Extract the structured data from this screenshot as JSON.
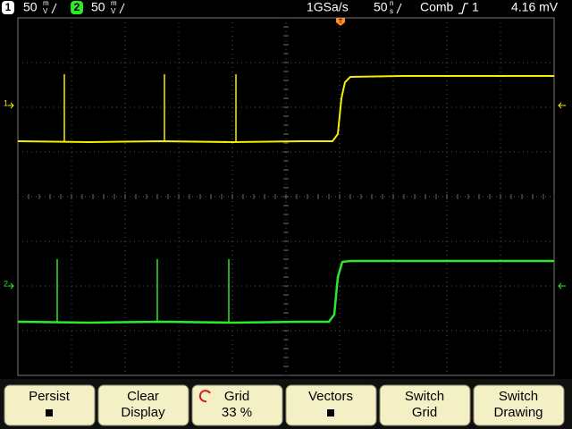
{
  "status": {
    "ch1": {
      "number": "1",
      "scale": "50",
      "unit_top": "m",
      "unit_bottom": "V"
    },
    "ch2": {
      "number": "2",
      "scale": "50",
      "unit_top": "m",
      "unit_bottom": "V"
    },
    "sample_rate": "1GSa/s",
    "timebase": {
      "scale": "50",
      "unit_top": "n",
      "unit_bottom": "s"
    },
    "trigger_mode": "Comb",
    "trigger_source": "1",
    "trigger_level": "4.16 mV"
  },
  "markers": {
    "trigger": "T",
    "ch1": "1",
    "ch2": "2"
  },
  "softkeys": [
    {
      "line1": "Persist"
    },
    {
      "line1": "Clear",
      "line2": "Display"
    },
    {
      "line1": "Grid",
      "line2": "33 %"
    },
    {
      "line1": "Vectors"
    },
    {
      "line1": "Switch",
      "line2": "Grid"
    },
    {
      "line1": "Switch",
      "line2": "Drawing"
    }
  ]
}
